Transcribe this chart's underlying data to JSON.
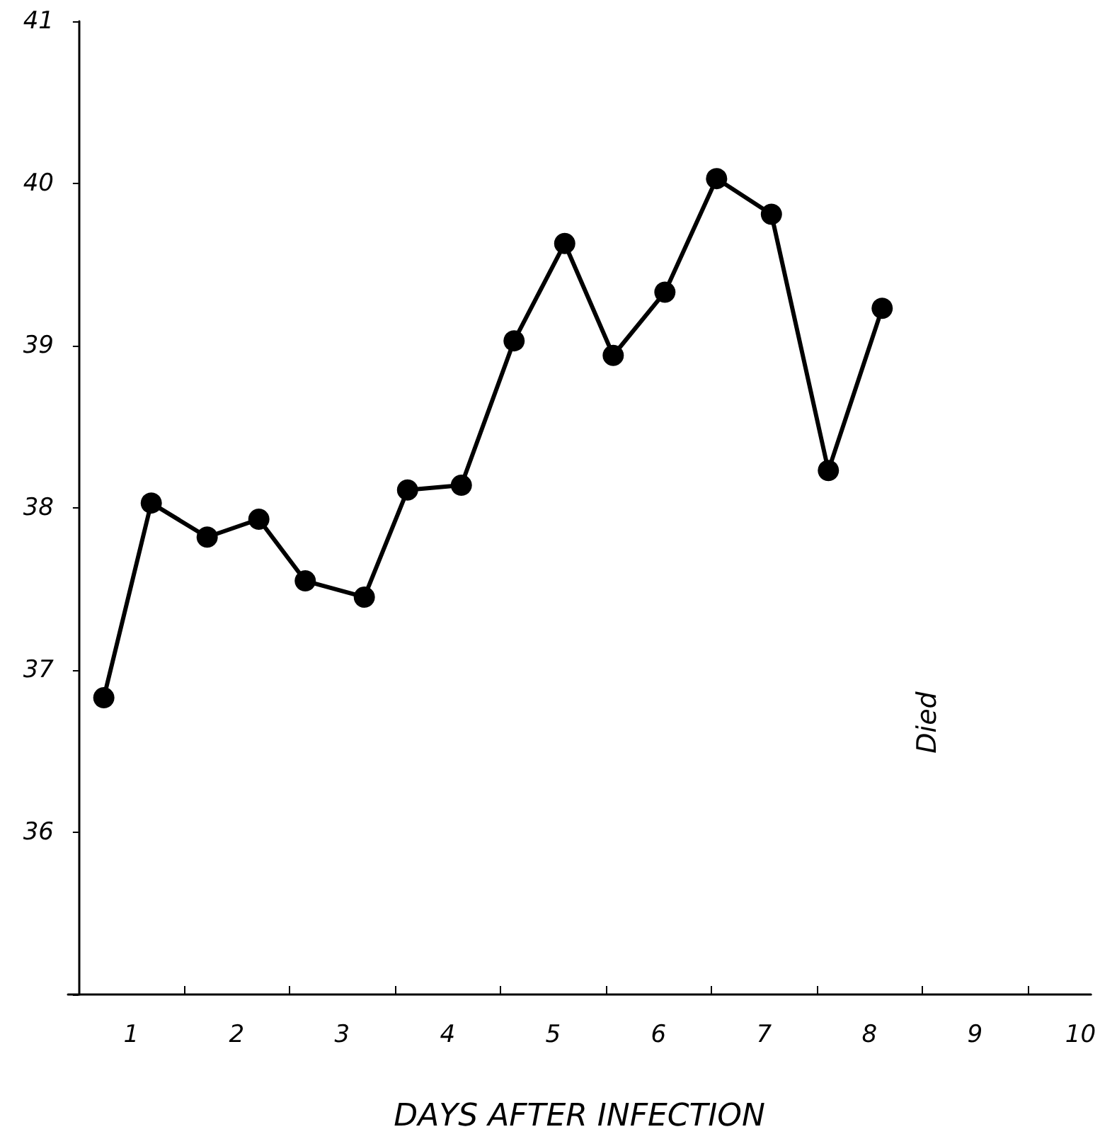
{
  "chart_data": {
    "type": "line",
    "xlabel": "DAYS AFTER INFECTION",
    "x": [
      0.24,
      0.69,
      1.22,
      1.71,
      2.15,
      2.71,
      3.12,
      3.63,
      4.13,
      4.61,
      5.07,
      5.56,
      6.05,
      6.57,
      7.11,
      7.62
    ],
    "series": [
      {
        "color": "#000000",
        "values": [
          36.83,
          38.03,
          37.82,
          37.93,
          37.55,
          37.45,
          38.11,
          38.14,
          39.03,
          39.63,
          38.94,
          39.33,
          40.03,
          39.81,
          38.23,
          39.23
        ]
      }
    ],
    "xlim": [
      -0.1,
      9.6
    ],
    "xticks": [
      {
        "value": 0.5,
        "label": "1"
      },
      {
        "value": 1,
        "label": null
      },
      {
        "value": 1.5,
        "label": "2"
      },
      {
        "value": 2,
        "label": null
      },
      {
        "value": 2.5,
        "label": "3"
      },
      {
        "value": 3,
        "label": null
      },
      {
        "value": 3.5,
        "label": "4"
      },
      {
        "value": 4,
        "label": null
      },
      {
        "value": 4.5,
        "label": "5"
      },
      {
        "value": 5,
        "label": null
      },
      {
        "value": 5.5,
        "label": "6"
      },
      {
        "value": 6,
        "label": null
      },
      {
        "value": 6.5,
        "label": "7"
      },
      {
        "value": 7,
        "label": null
      },
      {
        "value": 7.5,
        "label": "8"
      },
      {
        "value": 8,
        "label": null
      },
      {
        "value": 8.5,
        "label": "9"
      },
      {
        "value": 9,
        "label": null
      },
      {
        "value": 9.5,
        "label": "10"
      }
    ],
    "ylim": [
      35,
      41
    ],
    "yticks": [
      {
        "value": 35,
        "label": null
      },
      36,
      37,
      38,
      39,
      40,
      41
    ],
    "annotations": [
      "Died"
    ],
    "marker": "circle",
    "line_style": "solid",
    "grid": false
  }
}
